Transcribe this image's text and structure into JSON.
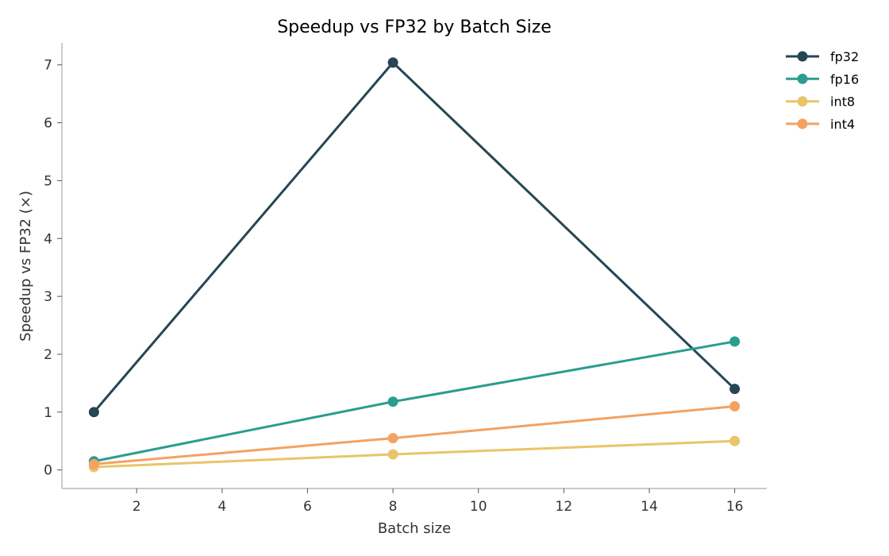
{
  "chart_data": {
    "type": "line",
    "title": "Speedup vs FP32 by Batch Size",
    "xlabel": "Batch size",
    "ylabel": "Speedup vs FP32 (×)",
    "x": [
      1,
      8,
      16
    ],
    "xticks": [
      2,
      4,
      6,
      8,
      10,
      12,
      14,
      16
    ],
    "yticks": [
      0,
      1,
      2,
      3,
      4,
      5,
      6,
      7
    ],
    "xlim": [
      0.25,
      16.75
    ],
    "ylim": [
      -0.32,
      7.38
    ],
    "grid": false,
    "legend_position": "top-right",
    "series": [
      {
        "name": "fp32",
        "color": "#264653",
        "values": [
          1.0,
          7.04,
          1.4
        ]
      },
      {
        "name": "fp16",
        "color": "#2a9d8f",
        "values": [
          0.15,
          1.18,
          2.22
        ]
      },
      {
        "name": "int8",
        "color": "#e9c46a",
        "values": [
          0.05,
          0.27,
          0.5
        ]
      },
      {
        "name": "int4",
        "color": "#f4a261",
        "values": [
          0.1,
          0.55,
          1.1
        ]
      }
    ]
  }
}
